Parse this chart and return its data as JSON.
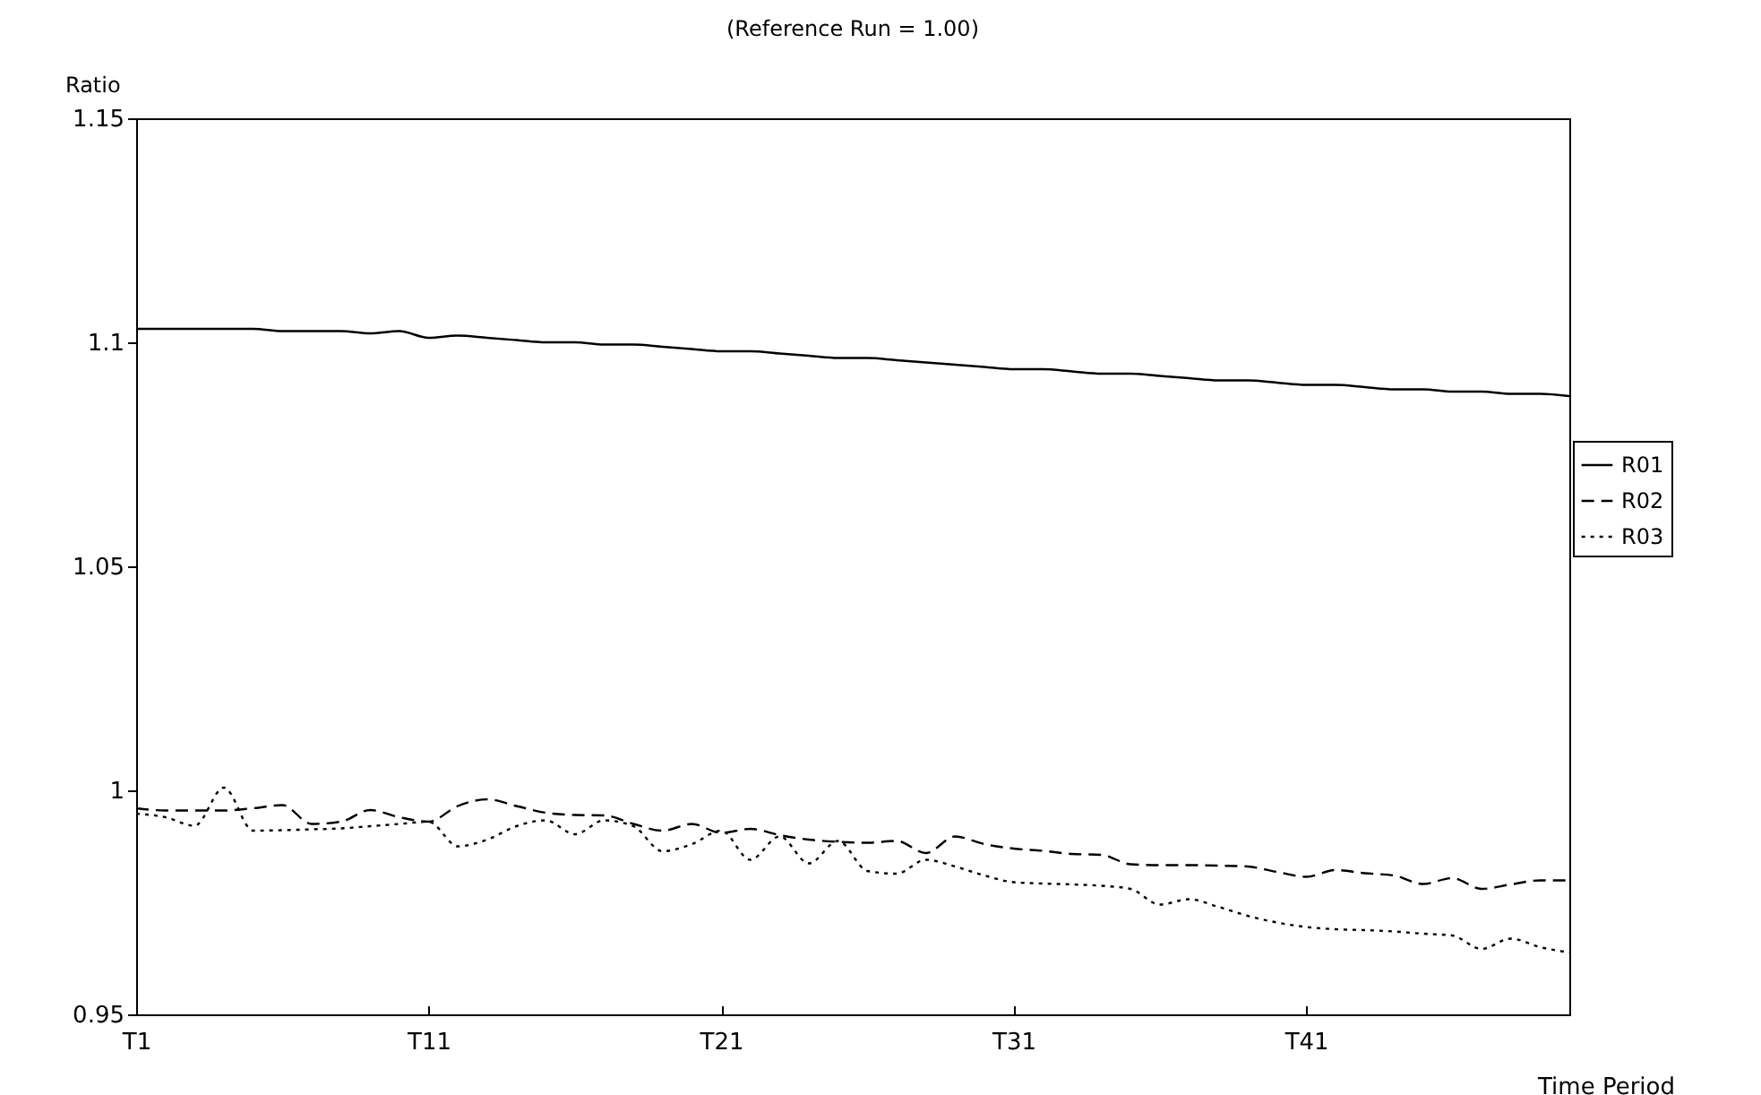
{
  "chart_data": {
    "type": "line",
    "title": "(Reference Run = 1.00)",
    "xlabel": "Time Period",
    "ylabel": "Ratio",
    "categories": [
      "T1",
      null,
      null,
      null,
      null,
      null,
      null,
      null,
      null,
      null,
      "T11",
      null,
      null,
      null,
      null,
      null,
      null,
      null,
      null,
      null,
      "T21",
      null,
      null,
      null,
      null,
      null,
      null,
      null,
      null,
      null,
      "T31",
      null,
      null,
      null,
      null,
      null,
      null,
      null,
      null,
      null,
      "T41",
      null,
      null,
      null,
      null,
      null,
      null,
      null,
      null,
      null
    ],
    "ylim": [
      0.95,
      1.15
    ],
    "yticks": [
      0.95,
      1,
      1.05,
      1.1,
      1.15
    ],
    "grid": false,
    "legend": "right",
    "series": [
      {
        "name": "R01",
        "color": "#000000",
        "line_style": "solid",
        "values": [
          1.103,
          1.103,
          1.103,
          1.103,
          1.103,
          1.1025,
          1.1025,
          1.1025,
          1.102,
          1.1025,
          1.101,
          1.1015,
          1.101,
          1.1005,
          1.1,
          1.1,
          1.0995,
          1.0995,
          1.099,
          1.0985,
          1.098,
          1.098,
          1.0975,
          1.097,
          1.0965,
          1.0965,
          1.096,
          1.0955,
          1.095,
          1.0945,
          1.094,
          1.094,
          1.0935,
          1.093,
          1.093,
          1.0925,
          1.092,
          1.0915,
          1.0915,
          1.091,
          1.0905,
          1.0905,
          1.09,
          1.0895,
          1.0895,
          1.089,
          1.089,
          1.0885,
          1.0885,
          1.088
        ]
      },
      {
        "name": "R02",
        "color": "#000000",
        "line_style": "dashed",
        "values": [
          0.996,
          0.9955,
          0.9955,
          0.9955,
          0.996,
          0.9967,
          0.9925,
          0.993,
          0.9956,
          0.994,
          0.993,
          0.9965,
          0.998,
          0.9965,
          0.995,
          0.9945,
          0.9944,
          0.9925,
          0.991,
          0.9925,
          0.9905,
          0.9914,
          0.99,
          0.989,
          0.9885,
          0.9883,
          0.9887,
          0.986,
          0.9897,
          0.988,
          0.987,
          0.9865,
          0.9858,
          0.9856,
          0.9835,
          0.9833,
          0.9833,
          0.9832,
          0.983,
          0.9818,
          0.9807,
          0.9822,
          0.9815,
          0.981,
          0.9791,
          0.9804,
          0.978,
          0.979,
          0.9799,
          0.9799
        ]
      },
      {
        "name": "R03",
        "color": "#000000",
        "line_style": "dotted",
        "values": [
          0.9948,
          0.994,
          0.9921,
          1.0006,
          0.991,
          0.9911,
          0.9913,
          0.9915,
          0.992,
          0.9925,
          0.993,
          0.9875,
          0.989,
          0.992,
          0.9933,
          0.9902,
          0.9933,
          0.992,
          0.9864,
          0.988,
          0.991,
          0.9845,
          0.9897,
          0.9837,
          0.9887,
          0.982,
          0.9814,
          0.9845,
          0.983,
          0.981,
          0.9795,
          0.9792,
          0.979,
          0.9787,
          0.978,
          0.9745,
          0.9757,
          0.974,
          0.972,
          0.9705,
          0.9695,
          0.969,
          0.9688,
          0.9685,
          0.968,
          0.9676,
          0.9646,
          0.9669,
          0.965,
          0.9638
        ]
      }
    ]
  }
}
